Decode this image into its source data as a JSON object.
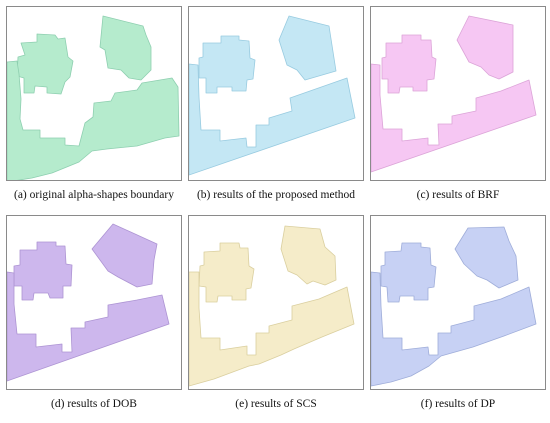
{
  "figure": {
    "panels": [
      {
        "caption": "(a) original alpha-shapes boundary",
        "fill": "#b5ebcd",
        "stroke": "#8ecfb0"
      },
      {
        "caption": "(b) results of the proposed method",
        "fill": "#c4e7f4",
        "stroke": "#98cbe0"
      },
      {
        "caption": "(c) results of BRF",
        "fill": "#f6c7f3",
        "stroke": "#dca4d8"
      },
      {
        "caption": "(d) results of DOB",
        "fill": "#cdb7ed",
        "stroke": "#ad94d3"
      },
      {
        "caption": "(e) results of SCS",
        "fill": "#f5ecc9",
        "stroke": "#dacf9f"
      },
      {
        "caption": "(f) results of DP",
        "fill": "#c7d1f4",
        "stroke": "#9fadd9"
      }
    ]
  }
}
